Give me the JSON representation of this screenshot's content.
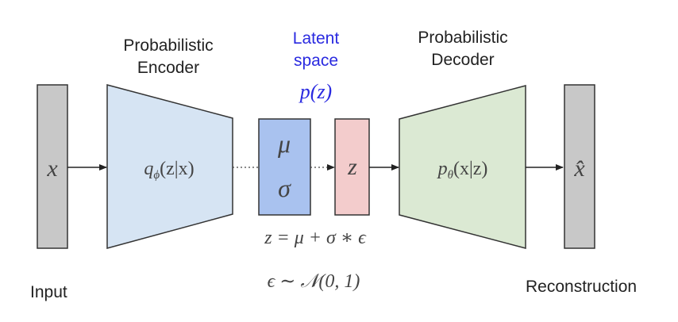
{
  "labels": {
    "encoder": "Probabilistic\nEncoder",
    "latent": "Latent\nspace",
    "latent_dist": "p(z)",
    "decoder": "Probabilistic\nDecoder",
    "input": "Input",
    "reconstruction": "Reconstruction"
  },
  "nodes": {
    "input_symbol": "x",
    "encoder_fn": "q",
    "encoder_sub": "ϕ",
    "encoder_args": "(z|x)",
    "mu": "μ",
    "sigma": "σ",
    "z": "z",
    "decoder_fn": "p",
    "decoder_sub": "θ",
    "decoder_args": "(x|z)",
    "output_symbol": "x̂"
  },
  "equations": {
    "reparam": "z = μ + σ ∗ ϵ",
    "noise": "ϵ ∼ 𝒩(0, 1)"
  },
  "colors": {
    "input_box": "#c8c8c8",
    "encoder": "#d6e4f3",
    "musigma": "#a9c2ef",
    "z_box": "#f3cccc",
    "decoder": "#dbe9d3",
    "latent_text": "#2a2ae0",
    "stroke": "#333333"
  }
}
